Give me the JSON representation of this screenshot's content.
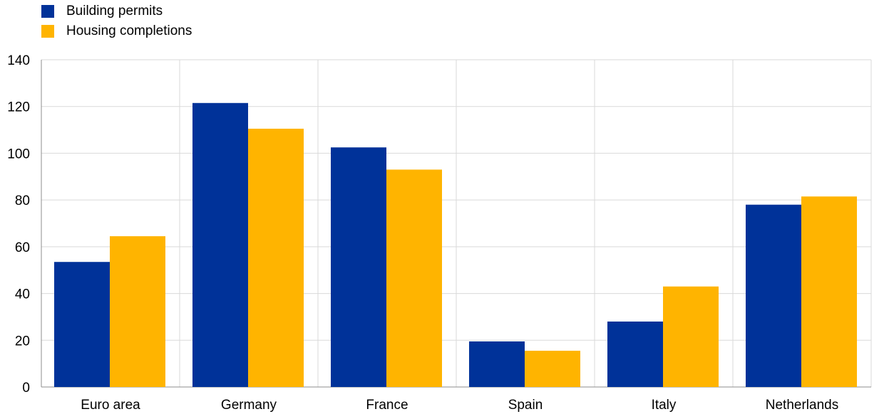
{
  "chart_data": {
    "type": "bar",
    "title": "",
    "xlabel": "",
    "ylabel": "",
    "categories": [
      "Euro area",
      "Germany",
      "France",
      "Spain",
      "Italy",
      "Netherlands"
    ],
    "series": [
      {
        "name": "Building permits",
        "color": "#003299",
        "values": [
          53.5,
          121.5,
          102.5,
          19.5,
          28,
          78
        ]
      },
      {
        "name": "Housing completions",
        "color": "#FFB400",
        "values": [
          64.5,
          110.5,
          93,
          15.5,
          43,
          81.5
        ]
      }
    ],
    "ylim": [
      0,
      140
    ],
    "yticks": [
      0,
      20,
      40,
      60,
      80,
      100,
      120,
      140
    ],
    "grid": true,
    "legend_position": "top-left"
  }
}
